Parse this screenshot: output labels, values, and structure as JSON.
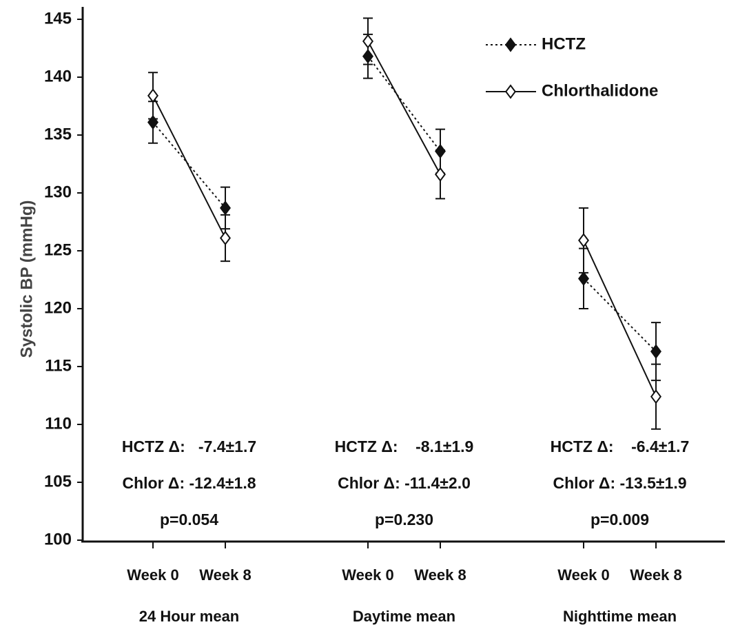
{
  "chart_data": {
    "type": "line",
    "y_label": "Systolic BP (mmHg)",
    "ylim": [
      100,
      145
    ],
    "yticks": [
      100,
      105,
      110,
      115,
      120,
      125,
      130,
      135,
      140,
      145
    ],
    "categories": [
      "Week 0",
      "Week 8",
      "Week 0",
      "Week 8",
      "Week 0",
      "Week 8"
    ],
    "groups": [
      {
        "name": "24 Hour mean",
        "annotation": [
          "HCTZ Δ:   -7.4±1.7",
          "Chlor Δ: -12.4±1.8",
          "p=0.054"
        ]
      },
      {
        "name": "Daytime mean",
        "annotation": [
          "HCTZ Δ:    -8.1±1.9",
          "Chlor Δ: -11.4±2.0",
          "p=0.230"
        ]
      },
      {
        "name": "Nighttime mean",
        "annotation": [
          "HCTZ Δ:    -6.4±1.7",
          "Chlor Δ: -13.5±1.9",
          "p=0.009"
        ]
      }
    ],
    "series": [
      {
        "name": "HCTZ",
        "color": "#111111",
        "marker": "filled-diamond",
        "line_style": "dotted",
        "values": [
          136.1,
          128.7,
          141.8,
          133.6,
          122.6,
          116.3
        ],
        "errors": [
          1.8,
          1.8,
          1.9,
          1.9,
          2.6,
          2.5
        ]
      },
      {
        "name": "Chlorthalidone",
        "color": "#111111",
        "marker": "open-diamond",
        "line_style": "solid",
        "values": [
          138.4,
          126.1,
          143.1,
          131.6,
          125.9,
          112.4
        ],
        "errors": [
          2.0,
          2.0,
          2.0,
          2.1,
          2.8,
          2.8
        ]
      }
    ],
    "legend": "top-right"
  }
}
